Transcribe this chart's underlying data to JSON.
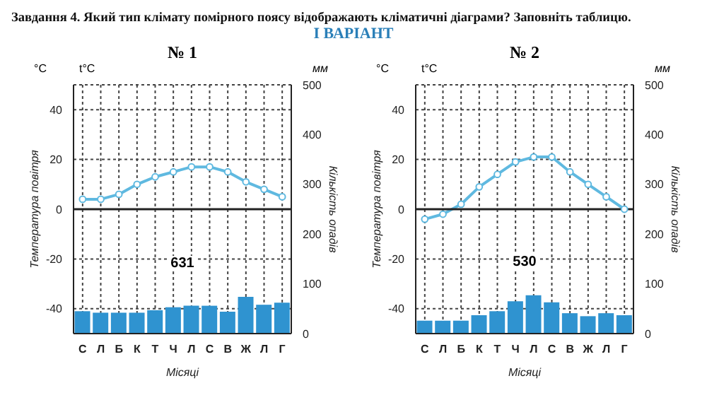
{
  "chart_data": [
    {
      "type": "bar",
      "title": "№ 1",
      "xlabel": "Місяці",
      "ylabel": "Температура повітря",
      "y2label": "Кількість опадів",
      "annotations": [
        "Завдання 4. Який тип клімату помірного поясу відображають кліматичні діаграми? Заповніть таблицю.",
        "І ВАРІАНТ",
        "°C",
        "t°C",
        "мм",
        "631"
      ],
      "categories": [
        "С",
        "Л",
        "Б",
        "К",
        "Т",
        "Ч",
        "Л",
        "С",
        "В",
        "Ж",
        "Л",
        "Г"
      ],
      "series": [
        {
          "axis": "y2",
          "color": "#2f93d0",
          "values": [
            45,
            42,
            42,
            42,
            47,
            53,
            56,
            56,
            44,
            74,
            58,
            62
          ]
        },
        {
          "type": "line",
          "color": "#5fb9e0",
          "values": [
            4,
            4,
            6,
            10,
            13,
            15,
            17,
            17,
            15,
            11,
            8,
            5
          ]
        }
      ],
      "ylim": [
        -50,
        50
      ],
      "yticks": [
        -40,
        -20,
        0,
        20,
        40
      ],
      "y2lim": [
        0,
        500
      ],
      "y2ticks": [
        0,
        100,
        200,
        300,
        400,
        500
      ],
      "ref_lines": [
        {
          "axis": "y",
          "value": 0,
          "color": "#222222"
        }
      ],
      "grid": true,
      "marker": "circle"
    },
    {
      "type": "bar",
      "title": "№ 2",
      "xlabel": "Місяці",
      "ylabel": "Температура повітря",
      "y2label": "Кількість опадів",
      "annotations": [
        "°C",
        "t°C",
        "мм",
        "530"
      ],
      "categories": [
        "С",
        "Л",
        "Б",
        "К",
        "Т",
        "Ч",
        "Л",
        "С",
        "В",
        "Ж",
        "Л",
        "Г"
      ],
      "series": [
        {
          "axis": "y2",
          "color": "#2f93d0",
          "values": [
            26,
            26,
            26,
            37,
            45,
            65,
            77,
            63,
            41,
            35,
            41,
            37
          ]
        },
        {
          "type": "line",
          "color": "#5fb9e0",
          "values": [
            -4,
            -2,
            2,
            9,
            14,
            19,
            21,
            21,
            15,
            10,
            5,
            0
          ]
        }
      ],
      "ylim": [
        -50,
        50
      ],
      "yticks": [
        -40,
        -20,
        0,
        20,
        40
      ],
      "y2lim": [
        0,
        500
      ],
      "y2ticks": [
        0,
        100,
        200,
        300,
        400,
        500
      ],
      "ref_lines": [
        {
          "axis": "y",
          "value": 0,
          "color": "#222222"
        }
      ],
      "grid": true,
      "marker": "circle"
    }
  ]
}
